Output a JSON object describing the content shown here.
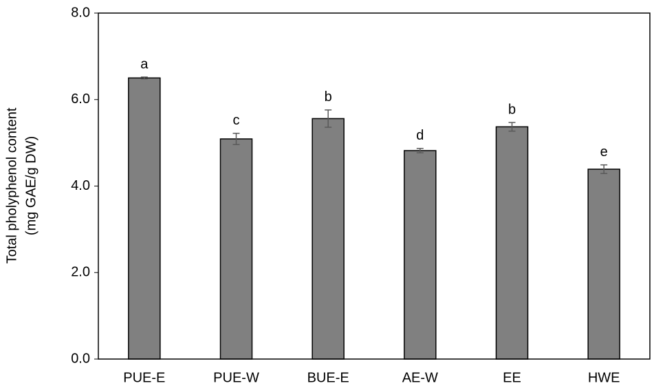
{
  "chart_data": {
    "type": "bar",
    "ylabel": [
      "Total pholyphenol content",
      "(mg GAE/g DW)"
    ],
    "categories": [
      "PUE-E",
      "PUE-W",
      "BUE-E",
      "AE-W",
      "EE",
      "HWE"
    ],
    "values": [
      6.5,
      5.09,
      5.56,
      4.82,
      5.37,
      4.39
    ],
    "errors": [
      0.02,
      0.13,
      0.2,
      0.05,
      0.1,
      0.1
    ],
    "annotations": [
      "a",
      "c",
      "b",
      "d",
      "b",
      "e"
    ],
    "color": "#808080",
    "ylim": [
      0,
      8
    ],
    "yticks": [
      {
        "value": 0,
        "label": "0.0"
      },
      {
        "value": 2,
        "label": "2.0"
      },
      {
        "value": 4,
        "label": "4.0"
      },
      {
        "value": 6,
        "label": "6.0"
      },
      {
        "value": 8,
        "label": "8.0"
      }
    ],
    "grid": false
  }
}
